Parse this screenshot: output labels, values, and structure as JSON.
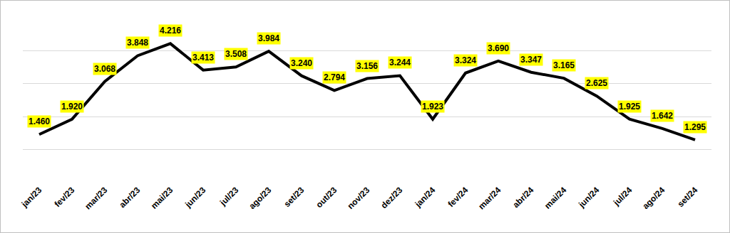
{
  "chart_data": {
    "type": "line",
    "categories": [
      "jan/23",
      "fev/23",
      "mar/23",
      "abr/23",
      "mai/23",
      "jun/23",
      "jul/23",
      "ago/23",
      "set/23",
      "out/23",
      "nov/23",
      "dez/23",
      "jan/24",
      "fev/24",
      "mar/24",
      "abr/24",
      "mai/24",
      "jun/24",
      "jul/24",
      "ago/24",
      "set/24"
    ],
    "values": [
      1460,
      1920,
      3068,
      3848,
      4216,
      3413,
      3508,
      3984,
      3240,
      2794,
      3156,
      3244,
      1923,
      3324,
      3690,
      3347,
      3165,
      2625,
      1925,
      1642,
      1295
    ],
    "value_labels": [
      "1.460",
      "1.920",
      "3.068",
      "3.848",
      "4.216",
      "3.413",
      "3.508",
      "3.984",
      "3.240",
      "2.794",
      "3.156",
      "3.244",
      "1.923",
      "3.324",
      "3.690",
      "3.347",
      "3.165",
      "2.625",
      "1.925",
      "1.642",
      "1.295"
    ],
    "color": "#000000",
    "ylim": [
      0,
      5000
    ],
    "yticks": [
      0,
      1000,
      2000,
      3000,
      4000,
      5000
    ],
    "grid": true,
    "data_labels": true,
    "tick_labels": "x"
  }
}
